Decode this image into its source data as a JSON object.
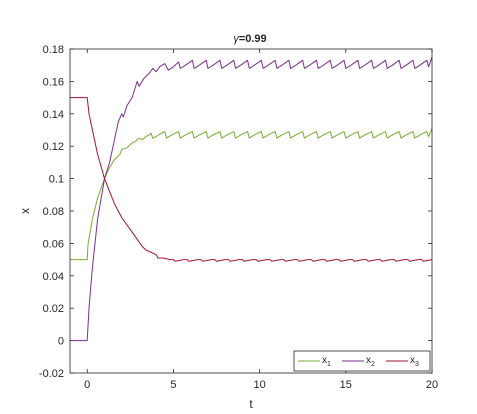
{
  "chart_data": {
    "type": "line",
    "title": {
      "symbol": "γ",
      "text": "=0.99"
    },
    "xlabel": "t",
    "ylabel": "x",
    "xlim": [
      -1,
      20
    ],
    "ylim": [
      -0.02,
      0.18
    ],
    "xticks": [
      0,
      5,
      10,
      15,
      20
    ],
    "xtick_labels": [
      "0",
      "5",
      "10",
      "15",
      "20"
    ],
    "yticks": [
      -0.02,
      0,
      0.02,
      0.04,
      0.06,
      0.08,
      0.1,
      0.12,
      0.14,
      0.16,
      0.18
    ],
    "ytick_labels": [
      "-0.02",
      "0",
      "0.02",
      "0.04",
      "0.06",
      "0.08",
      "0.1",
      "0.12",
      "0.14",
      "0.16",
      "0.18"
    ],
    "grid": false,
    "legend_position": "bottom-right",
    "legend_orientation": "horizontal",
    "series": [
      {
        "name": "x",
        "subscript": "1",
        "color": "#77ac30",
        "points": [
          [
            -1,
            0.05
          ],
          [
            0,
            0.05
          ],
          [
            0.05,
            0.06
          ],
          [
            0.3,
            0.075
          ],
          [
            0.6,
            0.088
          ],
          [
            1.0,
            0.1
          ],
          [
            1.3,
            0.107
          ],
          [
            1.6,
            0.112
          ],
          [
            1.9,
            0.115
          ],
          [
            2.0,
            0.118
          ],
          [
            2.3,
            0.119
          ],
          [
            2.6,
            0.122
          ],
          [
            2.8,
            0.123
          ],
          [
            3.0,
            0.125
          ],
          [
            3.2,
            0.124
          ],
          [
            3.4,
            0.126
          ],
          [
            3.6,
            0.127
          ],
          [
            3.7,
            0.128
          ],
          [
            3.8,
            0.125
          ],
          [
            4.0,
            0.126
          ],
          [
            4.3,
            0.128
          ],
          [
            4.5,
            0.129
          ],
          [
            4.6,
            0.125
          ],
          [
            4.9,
            0.127
          ],
          [
            5.3,
            0.129
          ],
          [
            5.4,
            0.125
          ],
          [
            5.7,
            0.127
          ],
          [
            6.1,
            0.129
          ],
          [
            6.2,
            0.125
          ],
          [
            6.5,
            0.127
          ],
          [
            6.9,
            0.129
          ],
          [
            7.0,
            0.125
          ],
          [
            7.3,
            0.127
          ],
          [
            7.7,
            0.129
          ],
          [
            7.8,
            0.125
          ],
          [
            8.1,
            0.127
          ],
          [
            8.5,
            0.129
          ],
          [
            8.6,
            0.125
          ],
          [
            8.9,
            0.127
          ],
          [
            9.3,
            0.129
          ],
          [
            9.4,
            0.125
          ],
          [
            9.7,
            0.127
          ],
          [
            10.1,
            0.129
          ],
          [
            10.2,
            0.125
          ],
          [
            10.5,
            0.127
          ],
          [
            10.9,
            0.129
          ],
          [
            11.0,
            0.125
          ],
          [
            11.3,
            0.127
          ],
          [
            11.7,
            0.129
          ],
          [
            11.8,
            0.125
          ],
          [
            12.1,
            0.127
          ],
          [
            12.5,
            0.129
          ],
          [
            12.6,
            0.125
          ],
          [
            12.9,
            0.127
          ],
          [
            13.3,
            0.129
          ],
          [
            13.4,
            0.125
          ],
          [
            13.7,
            0.127
          ],
          [
            14.1,
            0.129
          ],
          [
            14.2,
            0.125
          ],
          [
            14.5,
            0.127
          ],
          [
            14.9,
            0.129
          ],
          [
            15.0,
            0.125
          ],
          [
            15.3,
            0.127
          ],
          [
            15.7,
            0.129
          ],
          [
            15.8,
            0.125
          ],
          [
            16.1,
            0.127
          ],
          [
            16.5,
            0.129
          ],
          [
            16.6,
            0.125
          ],
          [
            16.9,
            0.127
          ],
          [
            17.3,
            0.129
          ],
          [
            17.4,
            0.125
          ],
          [
            17.7,
            0.127
          ],
          [
            18.1,
            0.129
          ],
          [
            18.2,
            0.125
          ],
          [
            18.5,
            0.127
          ],
          [
            18.9,
            0.129
          ],
          [
            19.0,
            0.125
          ],
          [
            19.3,
            0.127
          ],
          [
            19.7,
            0.129
          ],
          [
            19.8,
            0.126
          ],
          [
            20,
            0.131
          ]
        ]
      },
      {
        "name": "x",
        "subscript": "2",
        "color": "#7e2f8e",
        "points": [
          [
            -1,
            0
          ],
          [
            0,
            0
          ],
          [
            0.1,
            0.02
          ],
          [
            0.3,
            0.045
          ],
          [
            0.6,
            0.075
          ],
          [
            1.0,
            0.1
          ],
          [
            1.3,
            0.11
          ],
          [
            1.6,
            0.125
          ],
          [
            1.8,
            0.135
          ],
          [
            2.0,
            0.14
          ],
          [
            2.1,
            0.138
          ],
          [
            2.3,
            0.145
          ],
          [
            2.6,
            0.15
          ],
          [
            2.9,
            0.16
          ],
          [
            3.0,
            0.157
          ],
          [
            3.3,
            0.162
          ],
          [
            3.6,
            0.165
          ],
          [
            3.8,
            0.168
          ],
          [
            4.0,
            0.166
          ],
          [
            4.2,
            0.169
          ],
          [
            4.5,
            0.171
          ],
          [
            4.7,
            0.167
          ],
          [
            5.0,
            0.169
          ],
          [
            5.3,
            0.172
          ],
          [
            5.4,
            0.168
          ],
          [
            5.7,
            0.17
          ],
          [
            6.1,
            0.173
          ],
          [
            6.2,
            0.168
          ],
          [
            6.5,
            0.17
          ],
          [
            6.9,
            0.173
          ],
          [
            7.0,
            0.168
          ],
          [
            7.3,
            0.17
          ],
          [
            7.7,
            0.173
          ],
          [
            7.8,
            0.168
          ],
          [
            8.1,
            0.17
          ],
          [
            8.5,
            0.173
          ],
          [
            8.6,
            0.168
          ],
          [
            8.9,
            0.17
          ],
          [
            9.3,
            0.173
          ],
          [
            9.4,
            0.168
          ],
          [
            9.7,
            0.17
          ],
          [
            10.1,
            0.173
          ],
          [
            10.2,
            0.168
          ],
          [
            10.5,
            0.17
          ],
          [
            10.9,
            0.173
          ],
          [
            11.0,
            0.168
          ],
          [
            11.3,
            0.17
          ],
          [
            11.7,
            0.173
          ],
          [
            11.8,
            0.168
          ],
          [
            12.1,
            0.17
          ],
          [
            12.5,
            0.173
          ],
          [
            12.6,
            0.168
          ],
          [
            12.9,
            0.17
          ],
          [
            13.3,
            0.173
          ],
          [
            13.4,
            0.168
          ],
          [
            13.7,
            0.17
          ],
          [
            14.1,
            0.173
          ],
          [
            14.2,
            0.168
          ],
          [
            14.5,
            0.17
          ],
          [
            14.9,
            0.173
          ],
          [
            15.0,
            0.168
          ],
          [
            15.3,
            0.17
          ],
          [
            15.7,
            0.173
          ],
          [
            15.8,
            0.168
          ],
          [
            16.1,
            0.17
          ],
          [
            16.5,
            0.173
          ],
          [
            16.6,
            0.168
          ],
          [
            16.9,
            0.17
          ],
          [
            17.3,
            0.173
          ],
          [
            17.4,
            0.168
          ],
          [
            17.7,
            0.17
          ],
          [
            18.1,
            0.173
          ],
          [
            18.2,
            0.168
          ],
          [
            18.5,
            0.17
          ],
          [
            18.9,
            0.173
          ],
          [
            19.0,
            0.168
          ],
          [
            19.3,
            0.17
          ],
          [
            19.7,
            0.173
          ],
          [
            19.8,
            0.169
          ],
          [
            20,
            0.175
          ]
        ]
      },
      {
        "name": "x",
        "subscript": "3",
        "color": "#a2142f",
        "points": [
          [
            -1,
            0.15
          ],
          [
            0,
            0.15
          ],
          [
            0.1,
            0.14
          ],
          [
            0.3,
            0.13
          ],
          [
            0.6,
            0.115
          ],
          [
            1.0,
            0.1
          ],
          [
            1.3,
            0.092
          ],
          [
            1.6,
            0.084
          ],
          [
            2.0,
            0.076
          ],
          [
            2.4,
            0.07
          ],
          [
            2.8,
            0.064
          ],
          [
            3.2,
            0.058
          ],
          [
            3.4,
            0.056
          ],
          [
            3.6,
            0.055
          ],
          [
            4.0,
            0.053
          ],
          [
            4.1,
            0.051
          ],
          [
            4.4,
            0.051
          ],
          [
            4.8,
            0.05
          ],
          [
            5.0,
            0.05
          ],
          [
            5.1,
            0.049
          ],
          [
            5.6,
            0.05
          ],
          [
            5.8,
            0.05
          ],
          [
            5.9,
            0.049
          ],
          [
            6.4,
            0.05
          ],
          [
            6.6,
            0.05
          ],
          [
            6.7,
            0.049
          ],
          [
            7.2,
            0.05
          ],
          [
            7.4,
            0.05
          ],
          [
            7.5,
            0.049
          ],
          [
            8.0,
            0.05
          ],
          [
            8.2,
            0.05
          ],
          [
            8.3,
            0.049
          ],
          [
            8.8,
            0.05
          ],
          [
            9.0,
            0.05
          ],
          [
            9.1,
            0.049
          ],
          [
            9.6,
            0.05
          ],
          [
            9.8,
            0.05
          ],
          [
            9.9,
            0.049
          ],
          [
            10.4,
            0.05
          ],
          [
            10.6,
            0.05
          ],
          [
            10.7,
            0.049
          ],
          [
            11.2,
            0.05
          ],
          [
            11.4,
            0.05
          ],
          [
            11.5,
            0.049
          ],
          [
            12.0,
            0.05
          ],
          [
            12.2,
            0.05
          ],
          [
            12.3,
            0.049
          ],
          [
            12.8,
            0.05
          ],
          [
            13.0,
            0.05
          ],
          [
            13.1,
            0.049
          ],
          [
            13.6,
            0.05
          ],
          [
            13.8,
            0.05
          ],
          [
            13.9,
            0.049
          ],
          [
            14.4,
            0.05
          ],
          [
            14.6,
            0.05
          ],
          [
            14.7,
            0.049
          ],
          [
            15.2,
            0.05
          ],
          [
            15.4,
            0.05
          ],
          [
            15.5,
            0.049
          ],
          [
            16.0,
            0.05
          ],
          [
            16.2,
            0.05
          ],
          [
            16.3,
            0.049
          ],
          [
            16.8,
            0.05
          ],
          [
            17.0,
            0.05
          ],
          [
            17.1,
            0.049
          ],
          [
            17.6,
            0.05
          ],
          [
            17.8,
            0.05
          ],
          [
            17.9,
            0.049
          ],
          [
            18.4,
            0.05
          ],
          [
            18.6,
            0.05
          ],
          [
            18.7,
            0.049
          ],
          [
            19.2,
            0.05
          ],
          [
            19.4,
            0.05
          ],
          [
            19.5,
            0.049
          ],
          [
            20,
            0.05
          ]
        ]
      }
    ]
  }
}
